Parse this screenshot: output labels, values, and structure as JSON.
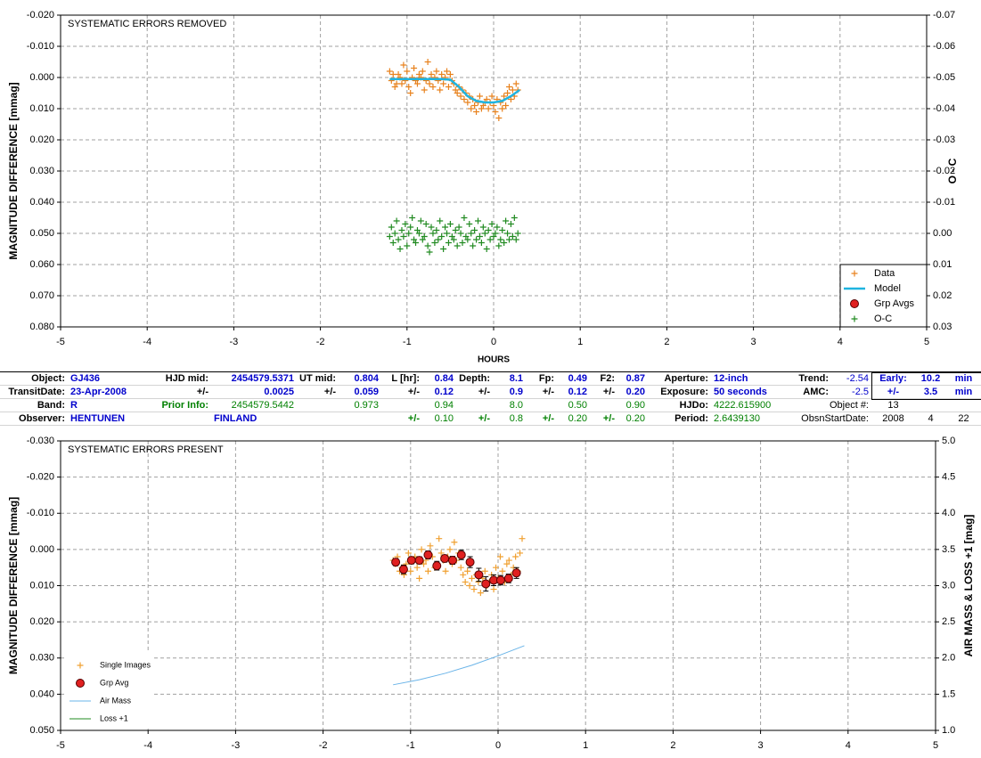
{
  "chart_data": [
    {
      "type": "scatter",
      "title": "SYSTEMATIC ERRORS REMOVED",
      "x_label": "HOURS",
      "y_label": "MAGNITUDE DIFFERENCE [mmag]",
      "y2_label": "O - C",
      "xlim": [
        -5,
        5
      ],
      "xticks": [
        -5,
        -4,
        -3,
        -2,
        -1,
        0,
        1,
        2,
        3,
        4,
        5
      ],
      "ylim": [
        0.08,
        -0.02
      ],
      "yticks": [
        {
          "value": -0.02,
          "label": "-0.020"
        },
        {
          "value": -0.01,
          "label": "-0.010"
        },
        {
          "value": 0,
          "label": "0.000"
        },
        {
          "value": 0.01,
          "label": "0.010"
        },
        {
          "value": 0.02,
          "label": "0.020"
        },
        {
          "value": 0.03,
          "label": "0.030"
        },
        {
          "value": 0.04,
          "label": "0.040"
        },
        {
          "value": 0.05,
          "label": "0.050"
        },
        {
          "value": 0.06,
          "label": "0.060"
        },
        {
          "value": 0.07,
          "label": "0.070"
        },
        {
          "value": 0.08,
          "label": "0.080"
        }
      ],
      "y2lim": [
        0.03,
        -0.07
      ],
      "y2ticks": [
        {
          "value": -0.07,
          "label": "-0.07"
        },
        {
          "value": -0.06,
          "label": "-0.06"
        },
        {
          "value": -0.05,
          "label": "-0.05"
        },
        {
          "value": -0.04,
          "label": "-0.04"
        },
        {
          "value": -0.03,
          "label": "-0.03"
        },
        {
          "value": -0.02,
          "label": "-0.02"
        },
        {
          "value": -0.01,
          "label": "-0.01"
        },
        {
          "value": 0,
          "label": "0.00"
        },
        {
          "value": 0.01,
          "label": "0.01"
        },
        {
          "value": 0.02,
          "label": "0.02"
        },
        {
          "value": 0.03,
          "label": "0.03"
        }
      ],
      "grid": true,
      "legend": "lower right",
      "series": [
        {
          "name": "Data",
          "color": "#e8821e",
          "style": "plus",
          "x": [
            -1.2,
            -1.18,
            -1.16,
            -1.14,
            -1.12,
            -1.1,
            -1.08,
            -1.06,
            -1.04,
            -1.02,
            -1,
            -0.98,
            -0.96,
            -0.94,
            -0.92,
            -0.9,
            -0.88,
            -0.86,
            -0.84,
            -0.82,
            -0.8,
            -0.78,
            -0.76,
            -0.74,
            -0.72,
            -0.7,
            -0.68,
            -0.66,
            -0.64,
            -0.62,
            -0.6,
            -0.58,
            -0.56,
            -0.54,
            -0.52,
            -0.5,
            -0.48,
            -0.46,
            -0.44,
            -0.42,
            -0.4,
            -0.38,
            -0.36,
            -0.34,
            -0.32,
            -0.3,
            -0.28,
            -0.26,
            -0.24,
            -0.22,
            -0.2,
            -0.18,
            -0.16,
            -0.14,
            -0.12,
            -0.1,
            -0.08,
            -0.06,
            -0.04,
            -0.02,
            0,
            0.02,
            0.04,
            0.06,
            0.08,
            0.1,
            0.12,
            0.14,
            0.16,
            0.18,
            0.2,
            0.22,
            0.24,
            0.26,
            0.28
          ],
          "values": [
            -0.002,
            0.001,
            -0.001,
            0.003,
            0.002,
            -0.001,
            0.0,
            0.002,
            -0.004,
            0.001,
            -0.002,
            0.003,
            0.005,
            0.0,
            -0.003,
            0.001,
            0.002,
            -0.001,
            0.0,
            -0.002,
            0.004,
            0.001,
            -0.005,
            0.002,
            -0.001,
            0.003,
            0.0,
            -0.002,
            0.001,
            0.004,
            -0.001,
            0.002,
            0.0,
            -0.002,
            0.003,
            -0.001,
            0.001,
            0.002,
            0.004,
            0.005,
            0.003,
            0.006,
            0.004,
            0.007,
            0.005,
            0.008,
            0.006,
            0.01,
            0.007,
            0.009,
            0.011,
            0.008,
            0.006,
            0.01,
            0.009,
            0.008,
            0.007,
            0.01,
            0.008,
            0.006,
            0.009,
            0.011,
            0.007,
            0.013,
            0.008,
            0.01,
            0.006,
            0.009,
            0.005,
            0.003,
            0.007,
            0.004,
            0.006,
            0.002,
            0.004
          ]
        },
        {
          "name": "Model",
          "color": "#1fb4e0",
          "style": "line",
          "x": [
            -1.2,
            -1.0,
            -0.8,
            -0.6,
            -0.5,
            -0.4,
            -0.3,
            -0.2,
            -0.1,
            0.0,
            0.1,
            0.2,
            0.3
          ],
          "values": [
            0.0005,
            0.0005,
            0.0005,
            0.0005,
            0.0007,
            0.003,
            0.006,
            0.0075,
            0.008,
            0.008,
            0.0075,
            0.006,
            0.004
          ]
        },
        {
          "name": "Grp Avgs",
          "color": "#e02020",
          "style": "circle",
          "x": [],
          "values": []
        },
        {
          "name": "O-C",
          "color": "#228b22",
          "style": "plus",
          "axis": "y2",
          "x": [
            -1.2,
            -1.18,
            -1.16,
            -1.14,
            -1.12,
            -1.1,
            -1.08,
            -1.06,
            -1.04,
            -1.02,
            -1,
            -0.98,
            -0.96,
            -0.94,
            -0.92,
            -0.9,
            -0.88,
            -0.86,
            -0.84,
            -0.82,
            -0.8,
            -0.78,
            -0.76,
            -0.74,
            -0.72,
            -0.7,
            -0.68,
            -0.66,
            -0.64,
            -0.62,
            -0.6,
            -0.58,
            -0.56,
            -0.54,
            -0.52,
            -0.5,
            -0.48,
            -0.46,
            -0.44,
            -0.42,
            -0.4,
            -0.38,
            -0.36,
            -0.34,
            -0.32,
            -0.3,
            -0.28,
            -0.26,
            -0.24,
            -0.22,
            -0.2,
            -0.18,
            -0.16,
            -0.14,
            -0.12,
            -0.1,
            -0.08,
            -0.06,
            -0.04,
            -0.02,
            0,
            0.02,
            0.04,
            0.06,
            0.08,
            0.1,
            0.12,
            0.14,
            0.16,
            0.18,
            0.2,
            0.22,
            0.24,
            0.26,
            0.28
          ],
          "values": [
            0.001,
            -0.002,
            0.003,
            0.0,
            -0.004,
            0.002,
            0.005,
            -0.001,
            0.001,
            -0.003,
            0.004,
            0.0,
            -0.002,
            -0.005,
            0.002,
            0.003,
            -0.001,
            0.0,
            -0.004,
            0.002,
            0.001,
            -0.003,
            0.004,
            0.006,
            -0.002,
            0.0,
            0.003,
            -0.001,
            0.002,
            -0.004,
            0.001,
            0.005,
            -0.002,
            0.0,
            0.003,
            -0.003,
            0.001,
            0.002,
            -0.001,
            0.004,
            -0.002,
            0.0,
            0.003,
            -0.005,
            0.001,
            0.002,
            -0.003,
            0.0,
            0.004,
            -0.001,
            0.002,
            -0.004,
            0.001,
            0.003,
            -0.002,
            0.0,
            0.005,
            -0.001,
            0.002,
            -0.003,
            0.001,
            0.0,
            -0.002,
            0.004,
            0.002,
            -0.001,
            0.003,
            -0.004,
            0.0,
            0.002,
            -0.003,
            0.001,
            -0.005,
            0.002,
            0.0
          ]
        }
      ]
    },
    {
      "type": "scatter",
      "title": "SYSTEMATIC ERRORS PRESENT",
      "y_label": "MAGNITUDE DIFFERENCE [mmag]",
      "y2_label": "AIR MASS & LOSS +1 [mag]",
      "xlim": [
        -5,
        5
      ],
      "xticks": [
        -5,
        -4,
        -3,
        -2,
        -1,
        0,
        1,
        2,
        3,
        4,
        5
      ],
      "ylim": [
        0.05,
        -0.03
      ],
      "yticks": [
        {
          "value": -0.03,
          "label": "-0.030"
        },
        {
          "value": -0.02,
          "label": "-0.020"
        },
        {
          "value": -0.01,
          "label": "-0.010"
        },
        {
          "value": 0,
          "label": "0.000"
        },
        {
          "value": 0.01,
          "label": "0.010"
        },
        {
          "value": 0.02,
          "label": "0.020"
        },
        {
          "value": 0.03,
          "label": "0.030"
        },
        {
          "value": 0.04,
          "label": "0.040"
        },
        {
          "value": 0.05,
          "label": "0.050"
        }
      ],
      "y2lim": [
        1,
        5
      ],
      "y2ticks": [
        {
          "value": 1,
          "label": "1.0"
        },
        {
          "value": 1.5,
          "label": "1.5"
        },
        {
          "value": 2,
          "label": "2.0"
        },
        {
          "value": 2.5,
          "label": "2.5"
        },
        {
          "value": 3,
          "label": "3.0"
        },
        {
          "value": 3.5,
          "label": "3.5"
        },
        {
          "value": 4,
          "label": "4.0"
        },
        {
          "value": 4.5,
          "label": "4.5"
        },
        {
          "value": 5,
          "label": "5.0"
        }
      ],
      "grid": true,
      "legend": "lower left",
      "series": [
        {
          "name": "Single Images",
          "color": "#f0a030",
          "style": "plus",
          "x": [
            -1.2,
            -1.175,
            -1.15,
            -1.125,
            -1.1,
            -1.075,
            -1.05,
            -1.025,
            -1,
            -0.975,
            -0.95,
            -0.925,
            -0.9,
            -0.875,
            -0.85,
            -0.825,
            -0.8,
            -0.775,
            -0.75,
            -0.725,
            -0.7,
            -0.675,
            -0.65,
            -0.625,
            -0.6,
            -0.575,
            -0.55,
            -0.525,
            -0.5,
            -0.475,
            -0.45,
            -0.425,
            -0.4,
            -0.375,
            -0.35,
            -0.325,
            -0.3,
            -0.275,
            -0.25,
            -0.225,
            -0.2,
            -0.175,
            -0.15,
            -0.125,
            -0.1,
            -0.075,
            -0.05,
            -0.025,
            0,
            0.025,
            0.05,
            0.075,
            0.1,
            0.125,
            0.15,
            0.175,
            0.2,
            0.225,
            0.25,
            0.275
          ],
          "values": [
            0.003,
            0.004,
            0.002,
            0.006,
            0.005,
            0.007,
            0.004,
            0.001,
            0.006,
            0.003,
            0.002,
            0.005,
            0.008,
            0.0,
            0.004,
            0.003,
            0.006,
            -0.001,
            0.002,
            0.005,
            0.004,
            -0.003,
            0.001,
            0.003,
            0.006,
            0.002,
            0.0,
            0.004,
            -0.002,
            0.003,
            0.001,
            0.005,
            0.007,
            0.009,
            0.006,
            0.01,
            0.008,
            0.011,
            0.007,
            0.009,
            0.012,
            0.008,
            0.006,
            0.01,
            0.009,
            0.007,
            0.011,
            0.005,
            0.008,
            0.002,
            0.006,
            0.009,
            0.004,
            0.003,
            0.007,
            0.005,
            0.002,
            0.006,
            0.001,
            -0.003
          ]
        },
        {
          "name": "Grp Avg",
          "color": "#e02020",
          "style": "circle",
          "x": [
            -1.17,
            -1.08,
            -0.99,
            -0.9,
            -0.8,
            -0.7,
            -0.61,
            -0.52,
            -0.42,
            -0.32,
            -0.22,
            -0.14,
            -0.05,
            0.03,
            0.12,
            0.21
          ],
          "values": [
            0.0035,
            0.0055,
            0.003,
            0.003,
            0.0015,
            0.0045,
            0.0025,
            0.003,
            0.0015,
            0.0035,
            0.007,
            0.0095,
            0.0085,
            0.0085,
            0.008,
            0.0065
          ],
          "errors": [
            0.001,
            0.0012,
            0.001,
            0.001,
            0.0011,
            0.0012,
            0.001,
            0.0011,
            0.0013,
            0.0015,
            0.0018,
            0.002,
            0.0015,
            0.0013,
            0.0012,
            0.0015
          ]
        },
        {
          "name": "Air Mass",
          "color": "#6ab4e8",
          "style": "line",
          "axis": "y2",
          "x": [
            -1.2,
            -0.9,
            -0.6,
            -0.3,
            0,
            0.3
          ],
          "values": [
            1.63,
            1.7,
            1.79,
            1.9,
            2.03,
            2.17
          ]
        },
        {
          "name": "Loss +1",
          "color": "#228b22",
          "style": "line",
          "axis": "y2",
          "x": [
            -1.2,
            0.3
          ],
          "values": [
            1,
            1
          ]
        }
      ]
    }
  ],
  "table": {
    "rows": [
      [
        "Object:",
        "GJ436",
        "HJD mid:",
        "2454579.5371",
        "UT mid:",
        "0.804",
        "L [hr]:",
        "0.84",
        "Depth:",
        "8.1",
        "Fp:",
        "0.49",
        "F2:",
        "0.87",
        "Aperture:",
        "12-inch",
        "Trend:",
        "-2.54",
        "Early:",
        "10.2",
        "min"
      ],
      [
        "TransitDate:",
        "23-Apr-2008",
        "+/-",
        "0.0025",
        "+/-",
        "0.059",
        "+/-",
        "0.12",
        "+/-",
        "0.9",
        "+/-",
        "0.12",
        "+/-",
        "0.20",
        "Exposure:",
        "50 seconds",
        "AMC:",
        "-2.5",
        "+/-",
        "3.5",
        "min"
      ],
      [
        "Band:",
        "R",
        "Prior Info:",
        "2454579.5442",
        null,
        "0.973",
        null,
        "0.94",
        null,
        "8.0",
        null,
        "0.50",
        null,
        "0.90",
        "HJDo:",
        "4222.615900",
        null,
        "Object #:",
        "13",
        null,
        null
      ],
      [
        "Observer:",
        "HENTUNEN",
        null,
        "FINLAND",
        null,
        null,
        "+/-",
        "0.10",
        "+/-",
        "0.8",
        "+/-",
        "0.20",
        "+/-",
        "0.20",
        "Period:",
        "2.6439130",
        null,
        "ObsnStartDate:",
        "2008",
        "4",
        "22"
      ]
    ]
  }
}
